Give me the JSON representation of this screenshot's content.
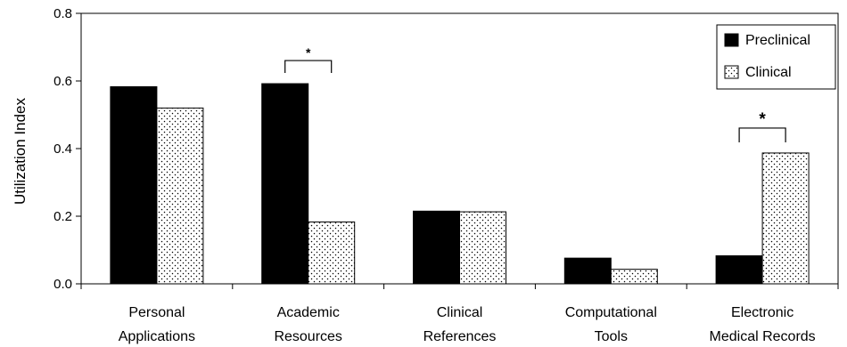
{
  "chart_data": {
    "type": "bar",
    "title": "",
    "xlabel": "",
    "ylabel": "Utilization Index",
    "ylim": [
      0,
      0.8
    ],
    "yticks": [
      "0.0",
      "0.2",
      "0.4",
      "0.6",
      "0.8"
    ],
    "categories": [
      [
        "Personal",
        "Applications"
      ],
      [
        "Academic",
        "Resources"
      ],
      [
        "Clinical",
        "References"
      ],
      [
        "Computational",
        "Tools"
      ],
      [
        "Electronic",
        "Medical Records"
      ]
    ],
    "series": [
      {
        "name": "Preclinical",
        "values": [
          0.583,
          0.592,
          0.215,
          0.076,
          0.083
        ],
        "fill": "#000000"
      },
      {
        "name": "Clinical",
        "values": [
          0.52,
          0.183,
          0.213,
          0.043,
          0.387
        ],
        "fill": "dotted"
      }
    ],
    "significance": [
      {
        "category_index": 1,
        "label": "*"
      },
      {
        "category_index": 4,
        "label": "*"
      }
    ],
    "legend_position": "top-right",
    "grid": false
  }
}
